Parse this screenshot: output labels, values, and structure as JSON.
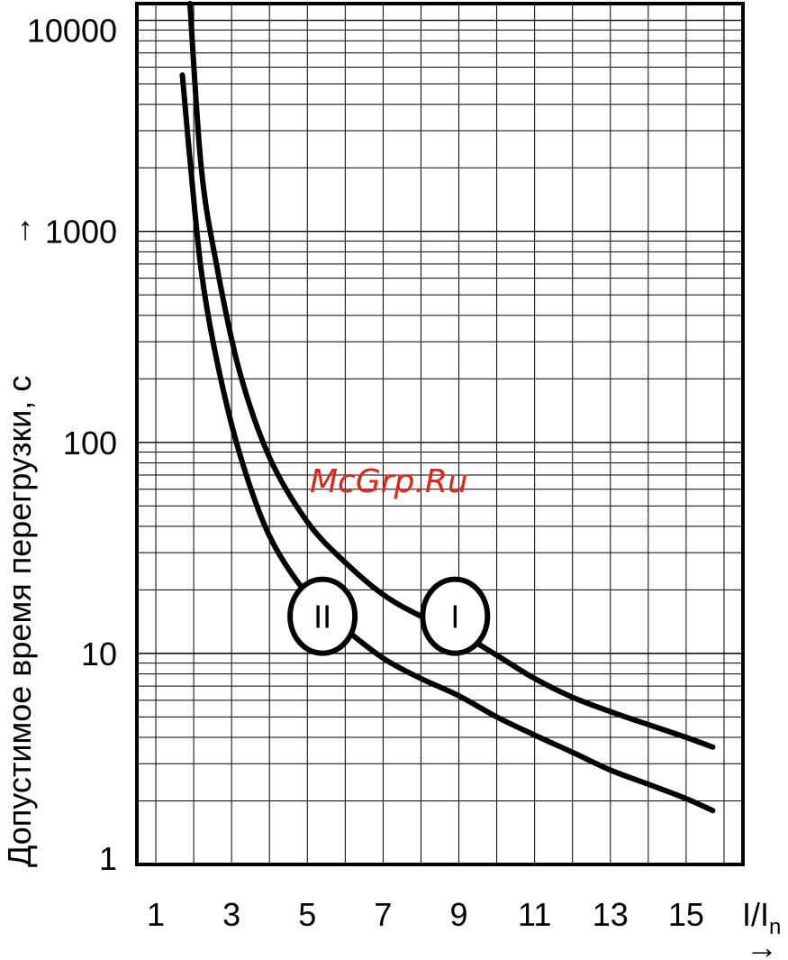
{
  "chart_data": {
    "type": "line",
    "ylabel": "Допустимое время перегрузки, с",
    "xlabel_main": "I/I",
    "xlabel_sub": "n",
    "xlim": [
      0.5,
      16.5
    ],
    "ylim": [
      1,
      12000
    ],
    "yscale": "log",
    "grid": true,
    "x_tick_labels": [
      "1",
      "3",
      "5",
      "7",
      "9",
      "11",
      "13",
      "15"
    ],
    "y_tick_labels": [
      "1",
      "10",
      "100",
      "1000",
      "10000"
    ],
    "series": [
      {
        "name": "I",
        "x": [
          1.9,
          2.2,
          2.6,
          3.2,
          4.0,
          5.0,
          6.0,
          7.0,
          8.0,
          9.0,
          10.0,
          11.0,
          12.0,
          13.0,
          14.0,
          15.0,
          15.7
        ],
        "y": [
          12000,
          2000,
          700,
          220,
          85,
          42,
          27,
          19,
          15,
          12.5,
          9.8,
          7.6,
          6.2,
          5.3,
          4.6,
          4.0,
          3.6
        ]
      },
      {
        "name": "II",
        "x": [
          1.7,
          1.9,
          2.2,
          2.6,
          3.2,
          4.0,
          5.0,
          5.9,
          7.0,
          8.0,
          9.0,
          10.0,
          11.0,
          12.0,
          13.0,
          14.0,
          15.0,
          15.7
        ],
        "y": [
          5500,
          2200,
          650,
          250,
          90,
          36,
          19,
          13.5,
          9.5,
          7.6,
          6.3,
          5.0,
          4.1,
          3.4,
          2.8,
          2.4,
          2.05,
          1.8
        ]
      }
    ],
    "curve_markers": [
      {
        "label": "II",
        "x": 5.4,
        "y": 15
      },
      {
        "label": "I",
        "x": 8.9,
        "y": 15
      }
    ]
  },
  "watermark": {
    "text": "McGrp.Ru",
    "color": "#e2231a"
  }
}
